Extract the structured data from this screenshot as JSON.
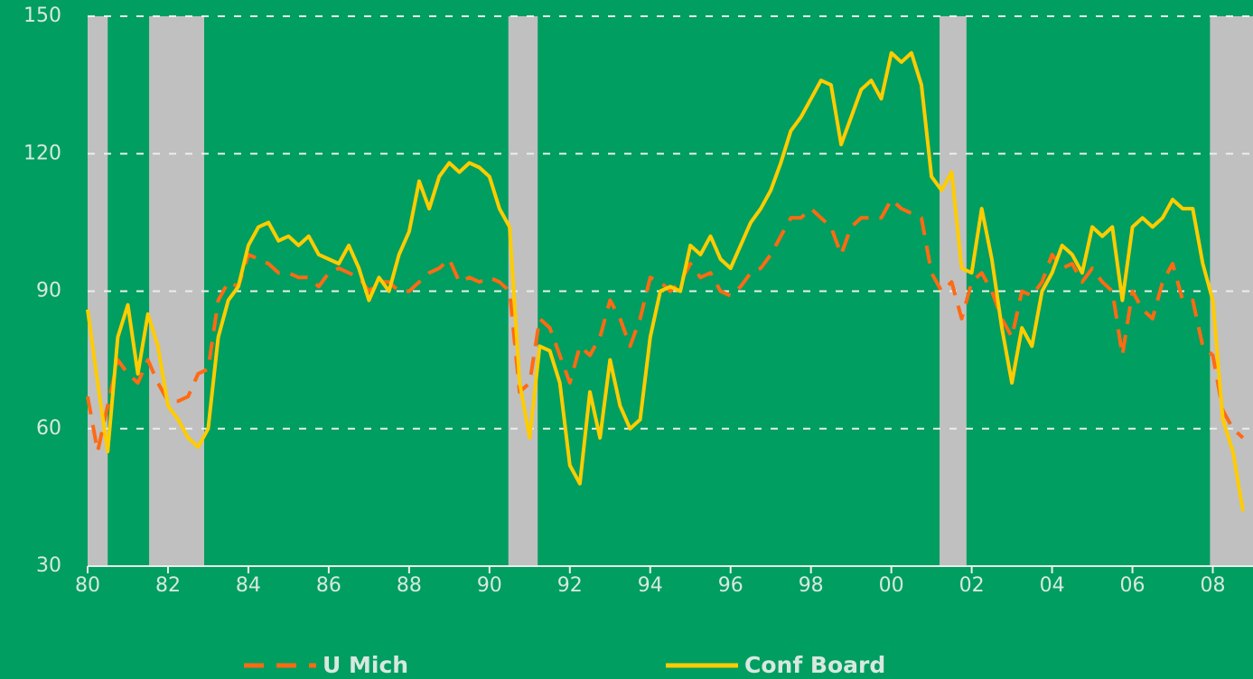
{
  "chart_data": {
    "type": "line",
    "x": [
      1980,
      1980.25,
      1980.5,
      1980.75,
      1981,
      1981.25,
      1981.5,
      1981.75,
      1982,
      1982.25,
      1982.5,
      1982.75,
      1983,
      1983.25,
      1983.5,
      1983.75,
      1984,
      1984.25,
      1984.5,
      1984.75,
      1985,
      1985.25,
      1985.5,
      1985.75,
      1986,
      1986.25,
      1986.5,
      1986.75,
      1987,
      1987.25,
      1987.5,
      1987.75,
      1988,
      1988.25,
      1988.5,
      1988.75,
      1989,
      1989.25,
      1989.5,
      1989.75,
      1990,
      1990.25,
      1990.5,
      1990.75,
      1991,
      1991.25,
      1991.5,
      1991.75,
      1992,
      1992.25,
      1992.5,
      1992.75,
      1993,
      1993.25,
      1993.5,
      1993.75,
      1994,
      1994.25,
      1994.5,
      1994.75,
      1995,
      1995.25,
      1995.5,
      1995.75,
      1996,
      1996.25,
      1996.5,
      1996.75,
      1997,
      1997.25,
      1997.5,
      1997.75,
      1998,
      1998.25,
      1998.5,
      1998.75,
      1999,
      1999.25,
      1999.5,
      1999.75,
      2000,
      2000.25,
      2000.5,
      2000.75,
      2001,
      2001.25,
      2001.5,
      2001.75,
      2002,
      2002.25,
      2002.5,
      2002.75,
      2003,
      2003.25,
      2003.5,
      2003.75,
      2004,
      2004.25,
      2004.5,
      2004.75,
      2005,
      2005.25,
      2005.5,
      2005.75,
      2006,
      2006.25,
      2006.5,
      2006.75,
      2007,
      2007.25,
      2007.5,
      2007.75,
      2008,
      2008.25,
      2008.5,
      2008.75
    ],
    "series": [
      {
        "name": "U Mich",
        "color": "#ff6a13",
        "dashed": true,
        "values": [
          67,
          55,
          65,
          75,
          72,
          70,
          75,
          70,
          66,
          66,
          67,
          72,
          73,
          88,
          92,
          91,
          98,
          97,
          96,
          94,
          94,
          93,
          93,
          91,
          94,
          95,
          94,
          93,
          90,
          92,
          92,
          90,
          90,
          92,
          94,
          95,
          97,
          92,
          93,
          92,
          93,
          92,
          90,
          68,
          70,
          84,
          82,
          76,
          70,
          78,
          76,
          80,
          88,
          84,
          78,
          84,
          93,
          92,
          90,
          92,
          96,
          93,
          94,
          90,
          89,
          91,
          94,
          95,
          98,
          102,
          106,
          106,
          108,
          106,
          104,
          98,
          104,
          106,
          106,
          106,
          110,
          108,
          107,
          106,
          94,
          90,
          92,
          84,
          92,
          94,
          90,
          84,
          80,
          90,
          89,
          92,
          98,
          95,
          96,
          92,
          95,
          92,
          90,
          76,
          90,
          86,
          84,
          92,
          96,
          88,
          88,
          78,
          76,
          64,
          60,
          58
        ]
      },
      {
        "name": "Conf Board",
        "color": "#ffcc00",
        "dashed": false,
        "values": [
          86,
          70,
          55,
          80,
          87,
          72,
          85,
          78,
          65,
          62,
          58,
          56,
          60,
          80,
          88,
          91,
          100,
          104,
          105,
          101,
          102,
          100,
          102,
          98,
          97,
          96,
          100,
          95,
          88,
          93,
          90,
          98,
          103,
          114,
          108,
          115,
          118,
          116,
          118,
          117,
          115,
          108,
          104,
          70,
          58,
          78,
          77,
          70,
          52,
          48,
          68,
          58,
          75,
          65,
          60,
          62,
          80,
          90,
          91,
          90,
          100,
          98,
          102,
          97,
          95,
          100,
          105,
          108,
          112,
          118,
          125,
          128,
          132,
          136,
          135,
          122,
          128,
          134,
          136,
          132,
          142,
          140,
          142,
          135,
          115,
          112,
          116,
          95,
          94,
          108,
          97,
          82,
          70,
          82,
          78,
          90,
          94,
          100,
          98,
          94,
          104,
          102,
          104,
          88,
          104,
          106,
          104,
          106,
          110,
          108,
          108,
          96,
          88,
          62,
          55,
          42
        ]
      }
    ],
    "recessions": [
      [
        1980,
        1980.5
      ],
      [
        1981.53,
        1982.9
      ],
      [
        1990.47,
        1991.2
      ],
      [
        2001.2,
        2001.87
      ],
      [
        2007.93,
        2009
      ]
    ],
    "xlim": [
      1980,
      2009
    ],
    "xticks": [
      {
        "value": 1980,
        "label": "80"
      },
      {
        "value": 1982,
        "label": "82"
      },
      {
        "value": 1984,
        "label": "84"
      },
      {
        "value": 1986,
        "label": "86"
      },
      {
        "value": 1988,
        "label": "88"
      },
      {
        "value": 1990,
        "label": "90"
      },
      {
        "value": 1992,
        "label": "92"
      },
      {
        "value": 1994,
        "label": "94"
      },
      {
        "value": 1996,
        "label": "96"
      },
      {
        "value": 1998,
        "label": "98"
      },
      {
        "value": 2000,
        "label": "00"
      },
      {
        "value": 2002,
        "label": "02"
      },
      {
        "value": 2004,
        "label": "04"
      },
      {
        "value": 2006,
        "label": "06"
      },
      {
        "value": 2008,
        "label": "08"
      }
    ],
    "ylim": [
      30,
      150
    ],
    "yticks": [
      30,
      60,
      90,
      120,
      150
    ],
    "grid": true
  }
}
